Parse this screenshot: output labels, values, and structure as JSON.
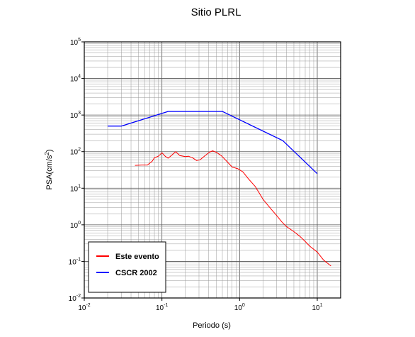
{
  "chart_data": {
    "type": "line",
    "title": "Sitio PLRL",
    "xlabel": "Periodo (s)",
    "ylabel": {
      "base": "PSA(cm/s",
      "sup": "2",
      "close": ")"
    },
    "x_scale": "log",
    "y_scale": "log",
    "xlim": [
      0.01,
      20
    ],
    "ylim": [
      0.01,
      100000
    ],
    "grid": true,
    "legend_position": "bottom-left",
    "x_ticks": [
      {
        "base": "10",
        "exp": "-2",
        "value": 0.01
      },
      {
        "base": "10",
        "exp": "-1",
        "value": 0.1
      },
      {
        "base": "10",
        "exp": "0",
        "value": 1
      },
      {
        "base": "10",
        "exp": "1",
        "value": 10
      }
    ],
    "y_ticks": [
      {
        "base": "10",
        "exp": "-2",
        "value": 0.01
      },
      {
        "base": "10",
        "exp": "-1",
        "value": 0.1
      },
      {
        "base": "10",
        "exp": "0",
        "value": 1
      },
      {
        "base": "10",
        "exp": "1",
        "value": 10
      },
      {
        "base": "10",
        "exp": "2",
        "value": 100
      },
      {
        "base": "10",
        "exp": "3",
        "value": 1000
      },
      {
        "base": "10",
        "exp": "4",
        "value": 10000
      },
      {
        "base": "10",
        "exp": "5",
        "value": 100000
      }
    ],
    "series": [
      {
        "name": "Este evento",
        "color": "#ff0000",
        "points": [
          [
            0.045,
            42
          ],
          [
            0.055,
            43
          ],
          [
            0.065,
            43
          ],
          [
            0.075,
            55
          ],
          [
            0.08,
            68
          ],
          [
            0.09,
            75
          ],
          [
            0.1,
            93
          ],
          [
            0.11,
            75
          ],
          [
            0.12,
            66
          ],
          [
            0.13,
            76
          ],
          [
            0.15,
            100
          ],
          [
            0.17,
            78
          ],
          [
            0.2,
            73
          ],
          [
            0.22,
            75
          ],
          [
            0.25,
            67
          ],
          [
            0.28,
            57
          ],
          [
            0.31,
            60
          ],
          [
            0.36,
            78
          ],
          [
            0.41,
            97
          ],
          [
            0.45,
            105
          ],
          [
            0.5,
            96
          ],
          [
            0.58,
            78
          ],
          [
            0.68,
            55
          ],
          [
            0.8,
            38
          ],
          [
            0.95,
            34
          ],
          [
            1.1,
            28
          ],
          [
            1.3,
            18
          ],
          [
            1.6,
            11
          ],
          [
            2.0,
            5
          ],
          [
            2.5,
            2.8
          ],
          [
            3.0,
            1.8
          ],
          [
            3.5,
            1.2
          ],
          [
            4.0,
            0.9
          ],
          [
            5.0,
            0.65
          ],
          [
            6.0,
            0.48
          ],
          [
            7.0,
            0.35
          ],
          [
            8.0,
            0.26
          ],
          [
            10.0,
            0.18
          ],
          [
            12.0,
            0.11
          ],
          [
            15.0,
            0.075
          ]
        ]
      },
      {
        "name": "CSCR 2002",
        "color": "#0000ff",
        "points": [
          [
            0.02,
            500
          ],
          [
            0.03,
            500
          ],
          [
            0.12,
            1250
          ],
          [
            0.6,
            1250
          ],
          [
            3.6,
            200
          ],
          [
            10.0,
            25
          ]
        ]
      }
    ]
  }
}
